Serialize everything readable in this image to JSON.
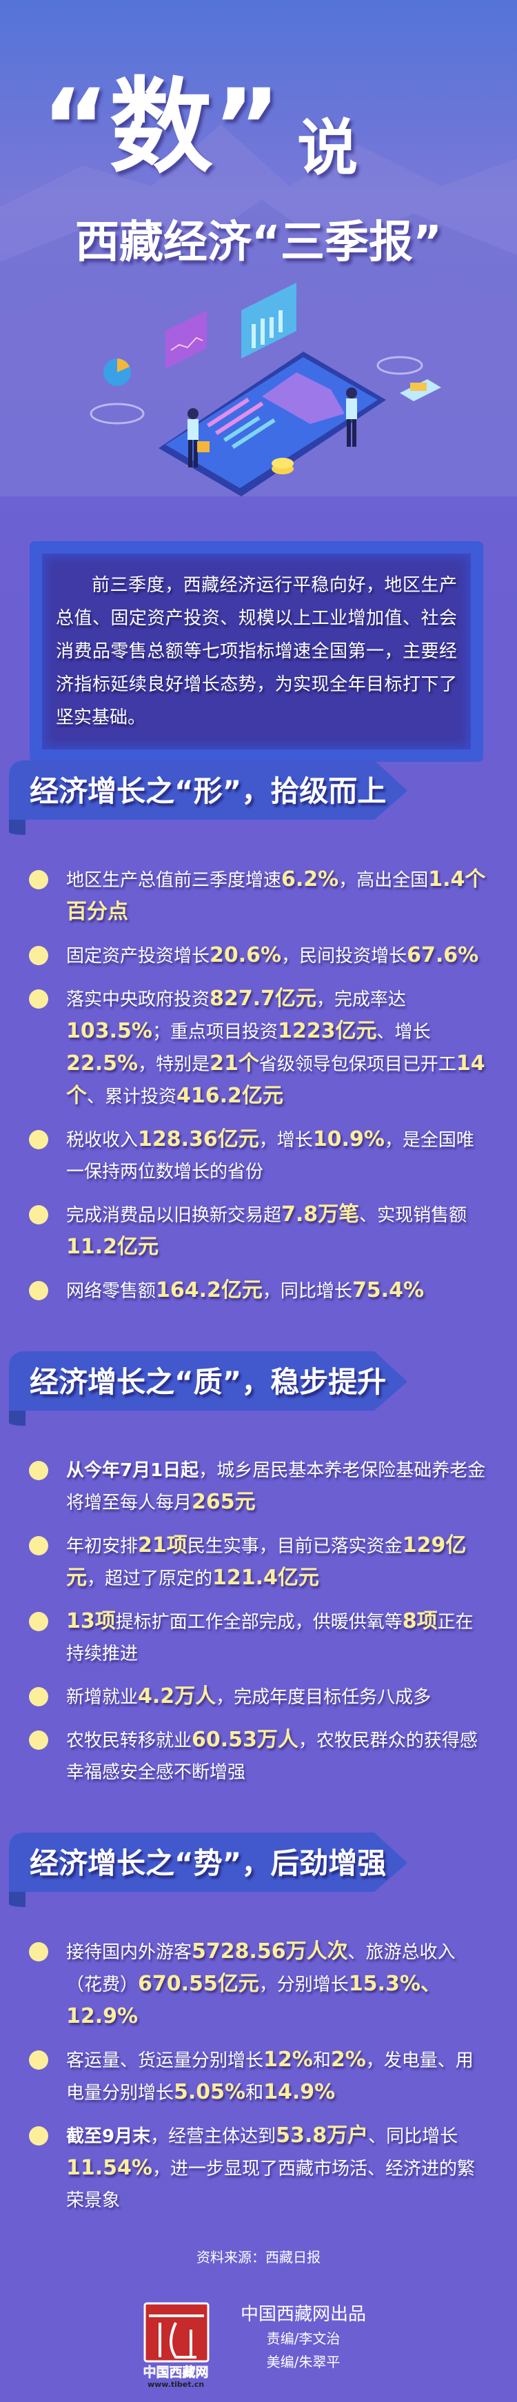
{
  "header": {
    "title_main": "“数”",
    "title_say": "说",
    "subtitle": "西藏经济“三季报”"
  },
  "intro": "前三季度，西藏经济运行平稳向好，地区生产总值、固定资产投资、规模以上工业增加值、社会消费品零售总额等七项指标增速全国第一，主要经济指标延续良好增长态势，为实现全年目标打下了坚实基础。",
  "colors": {
    "background": "#6b5fd2",
    "banner": "#4159cc",
    "highlight": "#fcee9b",
    "intro_box": "#3f3aa6"
  },
  "sections": [
    {
      "title": "经济增长之“形”，拾级而上",
      "items": [
        [
          {
            "t": "地区生产总值前三季度增速"
          },
          {
            "t": "6.2%",
            "hl": true
          },
          {
            "t": "，高出全国"
          },
          {
            "t": "1.4个百分点",
            "hl": true
          }
        ],
        [
          {
            "t": "固定资产投资增长"
          },
          {
            "t": "20.6%",
            "hl": true
          },
          {
            "t": "，民间投资增长"
          },
          {
            "t": "67.6%",
            "hl": true
          }
        ],
        [
          {
            "t": "落实中央政府投资"
          },
          {
            "t": "827.7亿元",
            "hl": true
          },
          {
            "t": "，完成率达"
          },
          {
            "t": "103.5%",
            "hl": true
          },
          {
            "t": "；重点项目投资"
          },
          {
            "t": "1223亿元",
            "hl": true
          },
          {
            "t": "、增长"
          },
          {
            "t": "22.5%",
            "hl": true
          },
          {
            "t": "，特别是"
          },
          {
            "t": "21个",
            "hl": true
          },
          {
            "t": "省级领导包保项目已开工"
          },
          {
            "t": "14个",
            "hl": true
          },
          {
            "t": "、累计投资"
          },
          {
            "t": "416.2亿元",
            "hl": true
          }
        ],
        [
          {
            "t": "税收收入"
          },
          {
            "t": "128.36亿元",
            "hl": true
          },
          {
            "t": "，增长"
          },
          {
            "t": "10.9%",
            "hl": true
          },
          {
            "t": "，是全国唯一保持两位数增长的省份"
          }
        ],
        [
          {
            "t": "完成消费品以旧换新交易超"
          },
          {
            "t": "7.8万笔",
            "hl": true
          },
          {
            "t": "、实现销售额"
          },
          {
            "t": "11.2亿元",
            "hl": true
          }
        ],
        [
          {
            "t": "网络零售额"
          },
          {
            "t": "164.2亿元",
            "hl": true
          },
          {
            "t": "，同比增长"
          },
          {
            "t": "75.4%",
            "hl": true
          }
        ]
      ]
    },
    {
      "title": "经济增长之“质”，稳步提升",
      "items": [
        [
          {
            "t": "从今年7月1日起",
            "b": true
          },
          {
            "t": "，城乡居民基本养老保险基础养老金将增至每人每月"
          },
          {
            "t": "265元",
            "hl": true
          }
        ],
        [
          {
            "t": "年初安排"
          },
          {
            "t": "21项",
            "hl": true
          },
          {
            "t": "民生实事，目前已落实资金"
          },
          {
            "t": "129亿元",
            "hl": true
          },
          {
            "t": "，超过了原定的"
          },
          {
            "t": "121.4亿元",
            "hl": true
          }
        ],
        [
          {
            "t": "13项",
            "hl": true
          },
          {
            "t": "提标扩面工作全部完成，供暖供氧等"
          },
          {
            "t": "8项",
            "hl": true
          },
          {
            "t": "正在持续推进"
          }
        ],
        [
          {
            "t": "新增就业"
          },
          {
            "t": "4.2万人",
            "hl": true
          },
          {
            "t": "，完成年度目标任务八成多"
          }
        ],
        [
          {
            "t": "农牧民转移就业"
          },
          {
            "t": "60.53万人",
            "hl": true
          },
          {
            "t": "，农牧民群众的获得感幸福感安全感不断增强"
          }
        ]
      ]
    },
    {
      "title": "经济增长之“势”，后劲增强",
      "items": [
        [
          {
            "t": "接待国内外游客"
          },
          {
            "t": "5728.56万人次",
            "hl": true
          },
          {
            "t": "、旅游总收入（花费）"
          },
          {
            "t": "670.55亿元",
            "hl": true
          },
          {
            "t": "，分别增长"
          },
          {
            "t": "15.3%、12.9%",
            "hl": true
          }
        ],
        [
          {
            "t": "客运量、货运量分别增长"
          },
          {
            "t": "12%",
            "hl": true
          },
          {
            "t": "和"
          },
          {
            "t": "2%",
            "hl": true
          },
          {
            "t": "，发电量、用电量分别增长"
          },
          {
            "t": "5.05%",
            "hl": true
          },
          {
            "t": "和"
          },
          {
            "t": "14.9%",
            "hl": true
          }
        ],
        [
          {
            "t": "截至9月末",
            "b": true
          },
          {
            "t": "，经营主体达到"
          },
          {
            "t": "53.8万户",
            "hl": true
          },
          {
            "t": "、同比增长"
          },
          {
            "t": "11.54%",
            "hl": true
          },
          {
            "t": "，进一步显现了西藏市场活、经济进的繁荣景象"
          }
        ]
      ]
    }
  ],
  "footer": {
    "source": "资料来源：西藏日报",
    "publisher": "中国西藏网出品",
    "editor": "责编/李文治",
    "designer": "美编/朱翠平",
    "logo_text": "中国西藏网",
    "logo_url": "www.tibet.cn"
  }
}
